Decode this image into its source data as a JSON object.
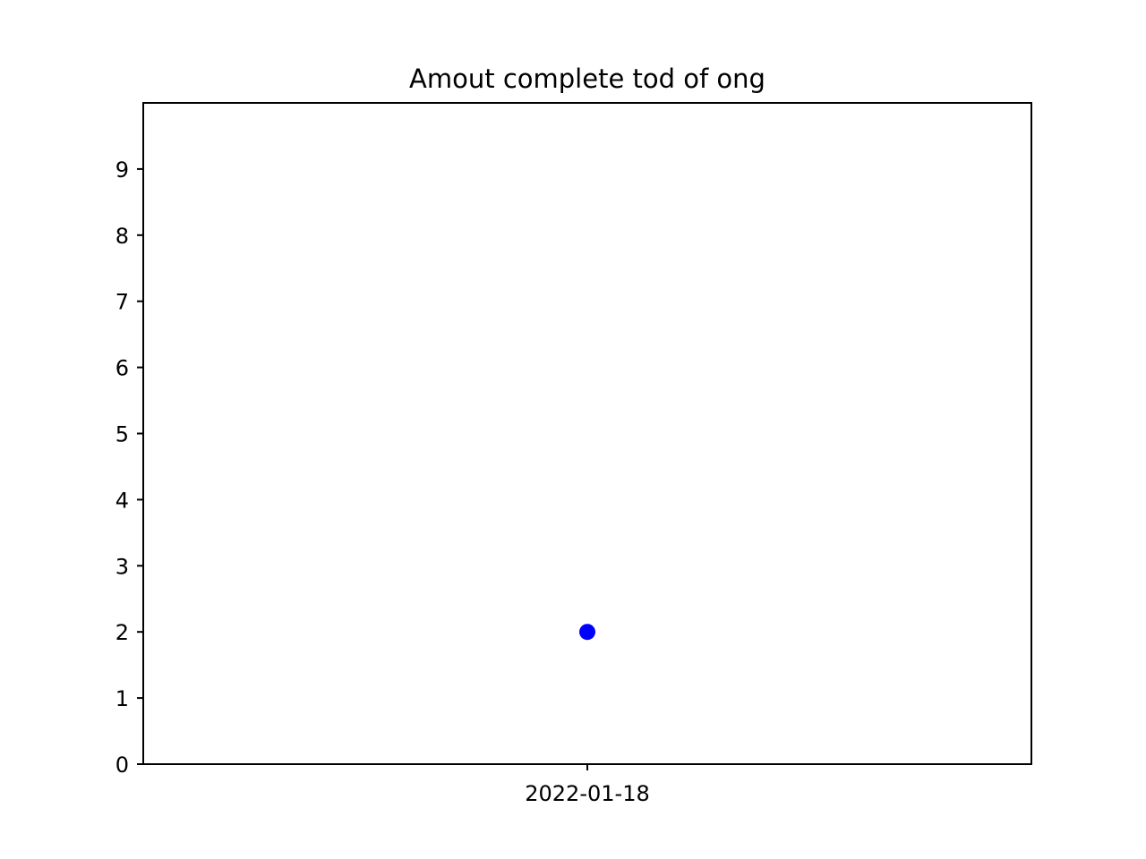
{
  "chart_data": {
    "type": "scatter",
    "title": "Amout complete tod of ong",
    "xlabel": "",
    "ylabel": "",
    "x_tick_labels": [
      "2022-01-18"
    ],
    "y_tick_labels": [
      "0",
      "1",
      "2",
      "3",
      "4",
      "5",
      "6",
      "7",
      "8",
      "9"
    ],
    "ylim": [
      0,
      10
    ],
    "grid": false,
    "marker_color": "#0000ff",
    "points": [
      {
        "x": "2022-01-18",
        "y": 2
      }
    ]
  }
}
